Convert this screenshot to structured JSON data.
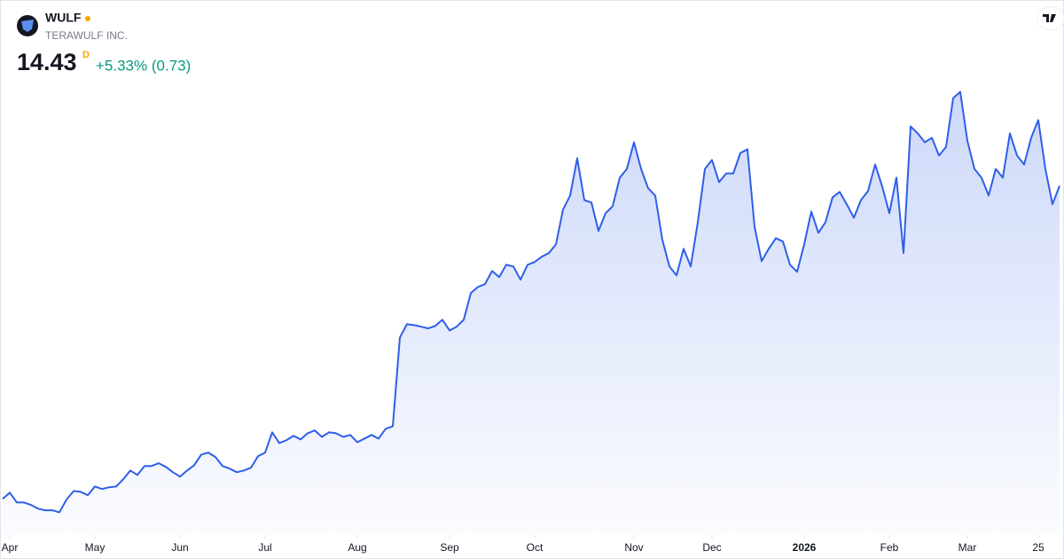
{
  "chart_data": {
    "type": "area",
    "symbol": "WULF",
    "title": "TERAWULF INC.",
    "price": 14.43,
    "interval": "D",
    "change": "+5.33% (0.73)",
    "color": "#2f5fe8",
    "values": [
      3.26,
      3.48,
      3.13,
      3.13,
      3.04,
      2.91,
      2.85,
      2.85,
      2.78,
      3.23,
      3.54,
      3.51,
      3.39,
      3.7,
      3.61,
      3.67,
      3.7,
      3.96,
      4.27,
      4.11,
      4.43,
      4.43,
      4.53,
      4.4,
      4.21,
      4.05,
      4.27,
      4.46,
      4.84,
      4.91,
      4.75,
      4.43,
      4.34,
      4.21,
      4.27,
      4.37,
      4.78,
      4.91,
      5.63,
      5.25,
      5.35,
      5.51,
      5.38,
      5.6,
      5.7,
      5.47,
      5.63,
      5.6,
      5.47,
      5.54,
      5.28,
      5.41,
      5.54,
      5.41,
      5.76,
      5.85,
      9.02,
      9.49,
      9.46,
      9.4,
      9.34,
      9.43,
      9.65,
      9.27,
      9.4,
      9.65,
      10.6,
      10.82,
      10.92,
      11.39,
      11.17,
      11.61,
      11.55,
      11.08,
      11.61,
      11.71,
      11.9,
      12.03,
      12.34,
      13.58,
      14.08,
      15.41,
      13.92,
      13.83,
      12.82,
      13.45,
      13.7,
      14.72,
      15.03,
      15.98,
      15.03,
      14.34,
      14.08,
      12.5,
      11.55,
      11.23,
      12.18,
      11.55,
      13.13,
      15.03,
      15.35,
      14.56,
      14.87,
      14.87,
      15.6,
      15.73,
      12.97,
      11.74,
      12.18,
      12.56,
      12.44,
      11.61,
      11.36,
      12.34,
      13.51,
      12.75,
      13.13,
      14.02,
      14.21,
      13.77,
      13.29,
      13.92,
      14.24,
      15.19,
      14.4,
      13.45,
      14.72,
      12.03,
      16.55,
      16.3,
      15.98,
      16.14,
      15.51,
      15.82,
      17.56,
      17.78,
      16.04,
      15.03,
      14.72,
      14.08,
      15.03,
      14.72,
      16.3,
      15.51,
      15.19,
      16.14,
      16.77,
      15.03,
      13.77,
      14.43
    ],
    "xlim": [
      0,
      149
    ],
    "xticks": [
      {
        "value": 1,
        "label": "Apr"
      },
      {
        "value": 13,
        "label": "May"
      },
      {
        "value": 25,
        "label": "Jun"
      },
      {
        "value": 37,
        "label": "Jul"
      },
      {
        "value": 50,
        "label": "Aug"
      },
      {
        "value": 63,
        "label": "Sep"
      },
      {
        "value": 75,
        "label": "Oct"
      },
      {
        "value": 89,
        "label": "Nov"
      },
      {
        "value": 100,
        "label": "Dec"
      },
      {
        "value": 113,
        "label": "2026"
      },
      {
        "value": 125,
        "label": "Feb"
      },
      {
        "value": 136,
        "label": "Mar"
      },
      {
        "value": 146,
        "label": "25"
      }
    ],
    "ylim": [
      2,
      19
    ]
  }
}
